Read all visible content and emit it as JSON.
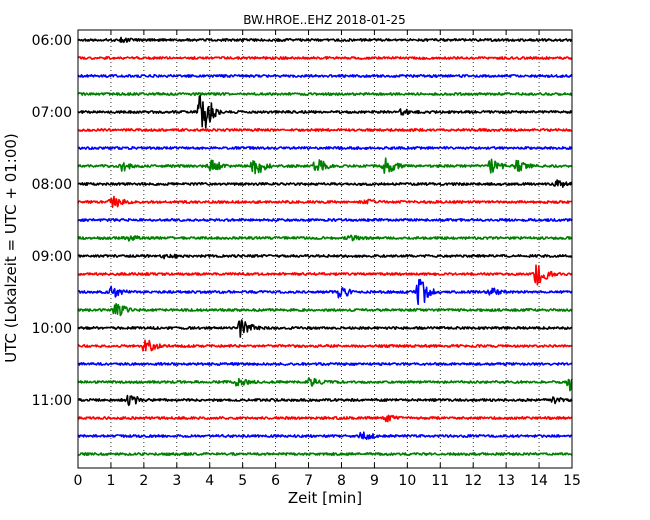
{
  "chart_data": {
    "type": "line",
    "title": "BW.HROE..EHZ 2018-01-25",
    "xlabel": "Zeit  [min]",
    "ylabel": "UTC (Lokalzeit = UTC + 01:00)",
    "xlim": [
      0,
      15
    ],
    "x_ticks": [
      0,
      1,
      2,
      3,
      4,
      5,
      6,
      7,
      8,
      9,
      10,
      11,
      12,
      13,
      14,
      15
    ],
    "y_ticks": [
      "06:00",
      "07:00",
      "08:00",
      "09:00",
      "10:00",
      "11:00"
    ],
    "grid": "vertical dotted",
    "trace_colors": [
      "#000000",
      "#ff0000",
      "#0000ff",
      "#008000"
    ],
    "traces": [
      {
        "start": "06:00",
        "color": "#000000",
        "events": [
          {
            "t": 1.3,
            "amp": 1.5
          }
        ]
      },
      {
        "start": "06:15",
        "color": "#ff0000",
        "events": []
      },
      {
        "start": "06:30",
        "color": "#0000ff",
        "events": []
      },
      {
        "start": "06:45",
        "color": "#008000",
        "events": []
      },
      {
        "start": "07:00",
        "color": "#000000",
        "events": [
          {
            "t": 3.7,
            "amp": 22
          },
          {
            "t": 9.8,
            "amp": 2
          }
        ]
      },
      {
        "start": "07:15",
        "color": "#ff0000",
        "events": []
      },
      {
        "start": "07:30",
        "color": "#0000ff",
        "events": []
      },
      {
        "start": "07:45",
        "color": "#008000",
        "events": [
          {
            "t": 1.3,
            "amp": 4
          },
          {
            "t": 4.0,
            "amp": 5
          },
          {
            "t": 5.3,
            "amp": 9
          },
          {
            "t": 7.2,
            "amp": 6
          },
          {
            "t": 9.3,
            "amp": 7
          },
          {
            "t": 12.5,
            "amp": 6
          },
          {
            "t": 13.3,
            "amp": 5
          }
        ]
      },
      {
        "start": "08:00",
        "color": "#000000",
        "events": [
          {
            "t": 14.5,
            "amp": 3
          }
        ]
      },
      {
        "start": "08:15",
        "color": "#ff0000",
        "events": [
          {
            "t": 1.0,
            "amp": 5
          },
          {
            "t": 8.7,
            "amp": 2
          }
        ]
      },
      {
        "start": "08:30",
        "color": "#0000ff",
        "events": []
      },
      {
        "start": "08:45",
        "color": "#008000",
        "events": [
          {
            "t": 1.5,
            "amp": 2
          },
          {
            "t": 8.2,
            "amp": 2
          }
        ]
      },
      {
        "start": "09:00",
        "color": "#000000",
        "events": [
          {
            "t": 2.6,
            "amp": 2.5
          }
        ]
      },
      {
        "start": "09:15",
        "color": "#ff0000",
        "events": [
          {
            "t": 13.9,
            "amp": 10
          }
        ]
      },
      {
        "start": "09:30",
        "color": "#0000ff",
        "events": [
          {
            "t": 1.0,
            "amp": 5
          },
          {
            "t": 7.9,
            "amp": 5
          },
          {
            "t": 10.3,
            "amp": 14
          },
          {
            "t": 12.5,
            "amp": 3
          }
        ]
      },
      {
        "start": "09:45",
        "color": "#008000",
        "events": [
          {
            "t": 1.1,
            "amp": 6
          }
        ]
      },
      {
        "start": "10:00",
        "color": "#000000",
        "events": [
          {
            "t": 4.9,
            "amp": 8
          }
        ]
      },
      {
        "start": "10:15",
        "color": "#ff0000",
        "events": [
          {
            "t": 2.0,
            "amp": 6
          }
        ]
      },
      {
        "start": "10:30",
        "color": "#0000ff",
        "events": []
      },
      {
        "start": "10:45",
        "color": "#008000",
        "events": [
          {
            "t": 4.8,
            "amp": 3
          },
          {
            "t": 7.0,
            "amp": 3
          },
          {
            "t": 14.9,
            "amp": 8
          }
        ]
      },
      {
        "start": "11:00",
        "color": "#000000",
        "events": [
          {
            "t": 1.5,
            "amp": 5
          },
          {
            "t": 14.4,
            "amp": 2.5
          }
        ]
      },
      {
        "start": "11:15",
        "color": "#ff0000",
        "events": [
          {
            "t": 9.3,
            "amp": 3
          }
        ]
      },
      {
        "start": "11:30",
        "color": "#0000ff",
        "events": [
          {
            "t": 8.6,
            "amp": 3
          }
        ]
      },
      {
        "start": "11:45",
        "color": "#008000",
        "events": []
      }
    ]
  }
}
